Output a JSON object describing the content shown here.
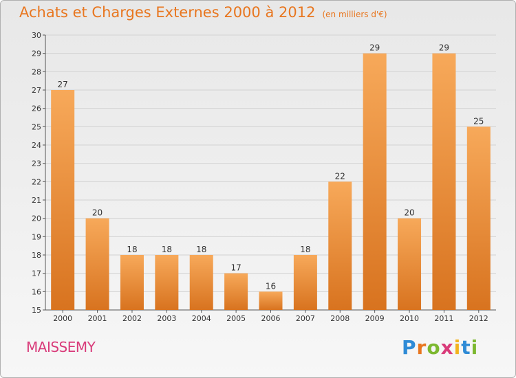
{
  "header": {
    "title": "Achats et Charges Externes 2000 à 2012",
    "subtitle": "(en milliers d'€)"
  },
  "commune": "MAISSEMY",
  "logo": {
    "letters": [
      "P",
      "r",
      "o",
      "x",
      "i",
      "t",
      "i"
    ],
    "colors": [
      "#2f8bd6",
      "#e8761f",
      "#7cb82f",
      "#d93b7a",
      "#f2b21c",
      "#2f8bd6",
      "#7cb82f"
    ]
  },
  "colors": {
    "bar_top": "#f7a95a",
    "bar_bottom": "#d8731f",
    "accent": "#e8761f",
    "commune": "#d93b7a"
  },
  "chart_data": {
    "type": "bar",
    "title": "Achats et Charges Externes 2000 à 2012",
    "subtitle": "(en milliers d'€)",
    "categories": [
      "2000",
      "2001",
      "2002",
      "2003",
      "2004",
      "2005",
      "2006",
      "2007",
      "2008",
      "2009",
      "2010",
      "2011",
      "2012"
    ],
    "values": [
      27,
      20,
      18,
      18,
      18,
      17,
      16,
      18,
      22,
      29,
      20,
      29,
      25
    ],
    "ylim": [
      15,
      30
    ],
    "yticks": [
      15,
      16,
      17,
      18,
      19,
      20,
      21,
      22,
      23,
      24,
      25,
      26,
      27,
      28,
      29,
      30
    ],
    "grid": true,
    "data_labels": true
  }
}
